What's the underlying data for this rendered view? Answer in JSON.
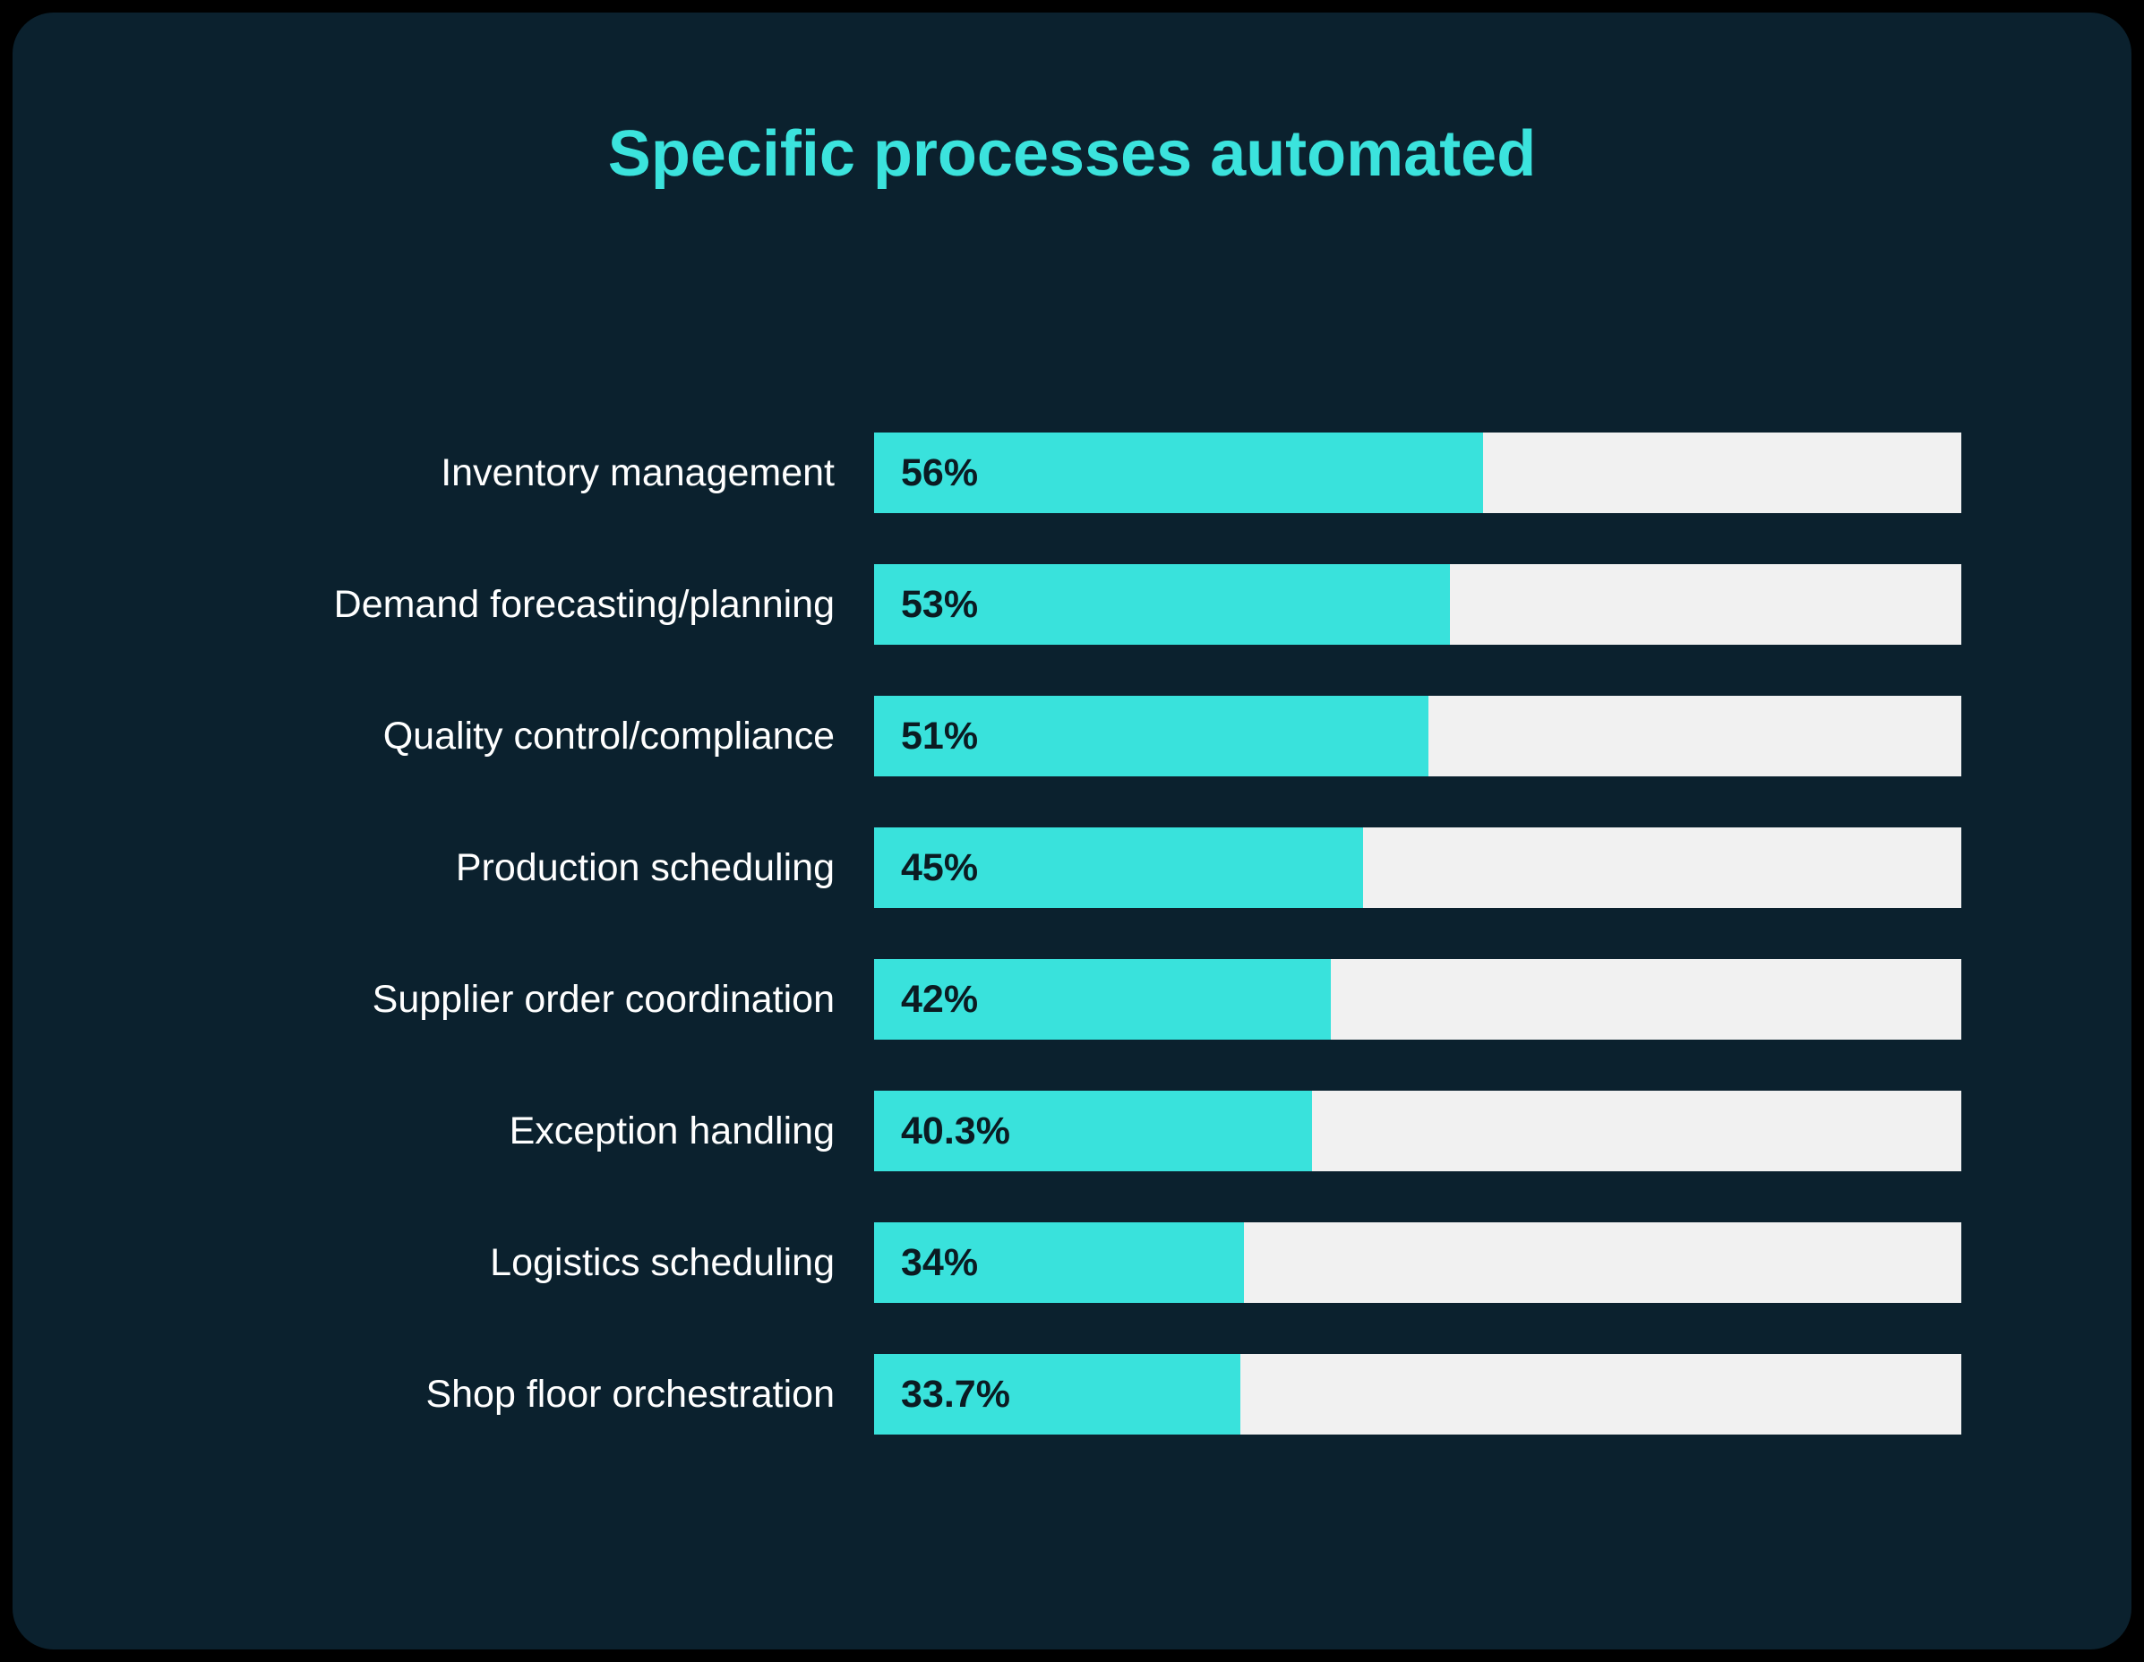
{
  "chart_data": {
    "type": "bar",
    "orientation": "horizontal",
    "title": "Specific processes automated",
    "categories": [
      "Inventory management",
      "Demand forecasting/planning",
      "Quality control/compliance",
      "Production scheduling",
      "Supplier order coordination",
      "Exception handling",
      "Logistics scheduling",
      "Shop floor orchestration"
    ],
    "values": [
      56,
      53,
      51,
      45,
      42,
      40.3,
      34,
      33.7
    ],
    "value_labels": [
      "56%",
      "53%",
      "51%",
      "45%",
      "42%",
      "40.3%",
      "34%",
      "33.7%"
    ],
    "xlabel": "",
    "ylabel": "",
    "xlim": [
      0,
      100
    ],
    "grid": false,
    "legend": "none",
    "colors": {
      "bar_fill": "#39e2dc",
      "bar_track": "#f1f1f1",
      "title": "#3be3dd",
      "category_label": "#ffffff",
      "value_label": "#0b1b22",
      "card_background": "#0b212e",
      "page_background": "#000000"
    }
  }
}
